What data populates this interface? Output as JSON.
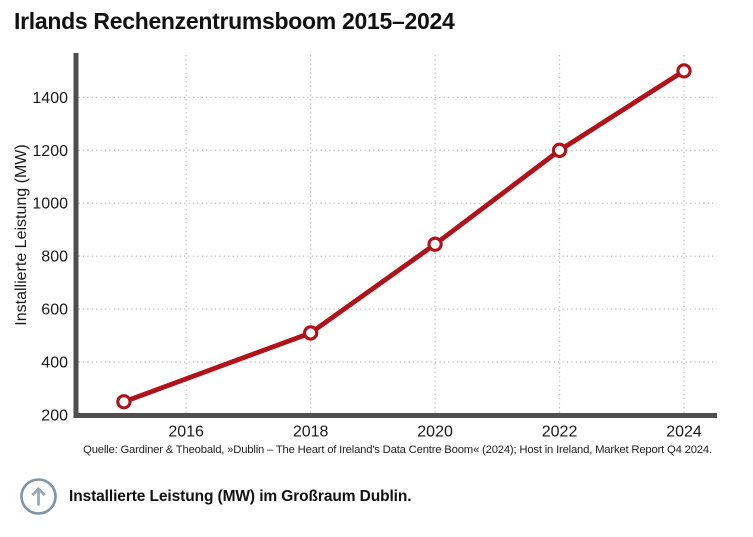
{
  "title": "Irlands Rechenzentrumsboom 2015–2024",
  "source": "Quelle: Gardiner & Theobald, »Dublin – The Heart of Ireland's Data Centre Boom« (2024); Host in Ireland, Market Report Q4 2024.",
  "caption": {
    "icon": "up-arrow-circle-icon",
    "text": "Installierte Leistung (MW) im Großraum Dublin."
  },
  "colors": {
    "line": "#b11118",
    "marker_fill": "#ffffff",
    "axis": "#4e4e4e",
    "grid": "#bdbdbd",
    "tick_text": "#1a1a1a",
    "icon_circle": "#8294a0",
    "icon_arrow": "#9aa8b0"
  },
  "chart_data": {
    "type": "line",
    "title": "Irlands Rechenzentrumsboom 2015–2024",
    "x": [
      2015,
      2018,
      2020,
      2022,
      2024
    ],
    "series": [
      {
        "name": "Installierte Leistung (MW) im Großraum Dublin",
        "values": [
          250,
          510,
          845,
          1200,
          1500
        ]
      }
    ],
    "xlabel": "",
    "ylabel": "Installierte Leistung (MW)",
    "xticks": [
      2016,
      2018,
      2020,
      2022,
      2024
    ],
    "yticks": [
      200,
      400,
      600,
      800,
      1000,
      1200,
      1400
    ],
    "xlim": [
      2014.27,
      2024.53
    ],
    "ylim": [
      200,
      1560
    ],
    "grid": "dotted",
    "legend": false,
    "marker": "open-circle"
  }
}
